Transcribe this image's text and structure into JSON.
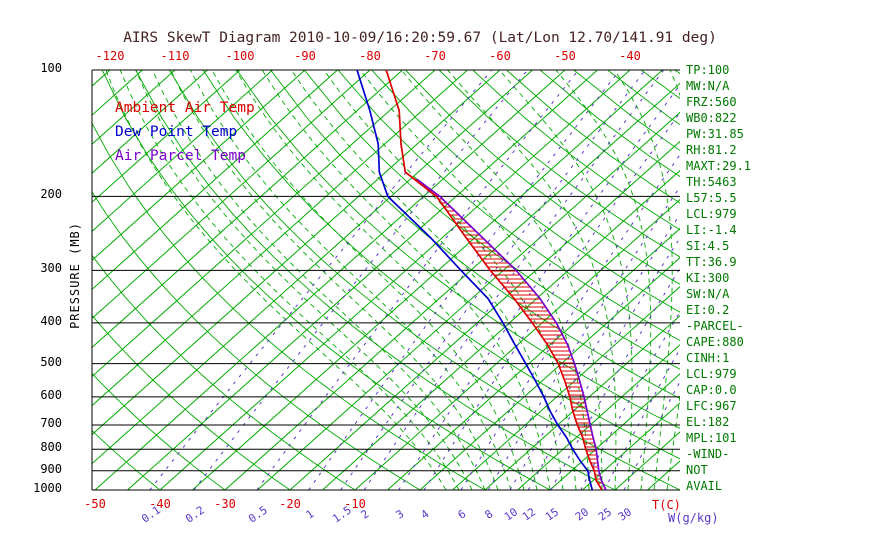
{
  "title": "AIRS SkewT Diagram 2010-10-09/16:20:59.67 (Lat/Lon 12.70/141.91 deg)",
  "colors": {
    "temp_line": "#dd0000",
    "dewpoint_line": "#0000cc",
    "parcel_line": "#7a00cc",
    "isotherm_green": "#00aa00",
    "adiabat_green": "#00aa00",
    "mixing_purple": "#5b37c9",
    "axis_black": "#000000",
    "info_green": "#007a00",
    "title_color": "#442222",
    "hatch_red": "#dd0000",
    "tick_red": "#dd0000"
  },
  "legend": [
    {
      "label": "Ambient Air Temp",
      "color": "#dd0000"
    },
    {
      "label": "Dew Point Temp",
      "color": "#0000cc"
    },
    {
      "label": "Air Parcel Temp",
      "color": "#7a00cc"
    }
  ],
  "info_panel": [
    "TP:100",
    "MW:N/A",
    "FRZ:560",
    "WB0:822",
    "PW:31.85",
    "RH:81.2",
    "MAXT:29.1",
    "TH:5463",
    "L57:5.5",
    "LCL:979",
    "LI:-1.4",
    "SI:4.5",
    "TT:36.9",
    "KI:300",
    "SW:N/A",
    "EI:0.2",
    "-PARCEL-",
    "CAPE:880",
    "CINH:1",
    "LCL:979",
    "CAP:0.0",
    "LFC:967",
    "EL:182",
    "MPL:101",
    "-WIND-",
    "NOT",
    "AVAIL"
  ],
  "axes": {
    "pressure_label": "PRESSURE (MB)",
    "pressure_ticks": [
      100,
      200,
      300,
      400,
      500,
      600,
      700,
      800,
      900,
      1000
    ],
    "top_temp_ticks": [
      -120,
      -110,
      -100,
      -90,
      -80,
      -70,
      -60,
      -50,
      -40
    ],
    "bottom_temp_ticks": [
      -50,
      -40,
      -30,
      -20,
      -10
    ],
    "temp_axis_label": "T(C)",
    "mixing_axis_label": "W(g/kg)"
  },
  "chart_data": {
    "type": "line",
    "title": "AIRS Skew-T log-P atmospheric sounding",
    "x_axis": "Temperature (C), skewed isotherms",
    "y_axis": "Pressure (MB), log scale",
    "y_range": [
      100,
      1000
    ],
    "series": [
      {
        "name": "Ambient Air Temp",
        "color": "#dd0000",
        "points": [
          [
            1000,
            28
          ],
          [
            950,
            25.5
          ],
          [
            900,
            23.5
          ],
          [
            850,
            21
          ],
          [
            800,
            18.5
          ],
          [
            750,
            16
          ],
          [
            700,
            13
          ],
          [
            650,
            10
          ],
          [
            600,
            7
          ],
          [
            550,
            3.5
          ],
          [
            500,
            -0.5
          ],
          [
            450,
            -5.5
          ],
          [
            400,
            -11.5
          ],
          [
            350,
            -18.5
          ],
          [
            300,
            -27
          ],
          [
            250,
            -36.5
          ],
          [
            200,
            -48
          ],
          [
            175,
            -57
          ],
          [
            150,
            -62.5
          ],
          [
            125,
            -68.5
          ],
          [
            100,
            -77.5
          ]
        ]
      },
      {
        "name": "Dew Point Temp",
        "color": "#0000cc",
        "points": [
          [
            1000,
            26.5
          ],
          [
            950,
            24.5
          ],
          [
            900,
            22.5
          ],
          [
            850,
            19.5
          ],
          [
            800,
            16.5
          ],
          [
            750,
            13.5
          ],
          [
            700,
            10
          ],
          [
            650,
            6.5
          ],
          [
            600,
            3
          ],
          [
            550,
            -1
          ],
          [
            500,
            -5.5
          ],
          [
            450,
            -10.5
          ],
          [
            400,
            -16
          ],
          [
            350,
            -22.5
          ],
          [
            300,
            -31.5
          ],
          [
            250,
            -42
          ],
          [
            200,
            -55.5
          ],
          [
            175,
            -61
          ],
          [
            150,
            -66
          ],
          [
            125,
            -73
          ],
          [
            100,
            -82
          ]
        ]
      },
      {
        "name": "Air Parcel Temp",
        "color": "#7a00cc",
        "points": [
          [
            1000,
            28.6
          ],
          [
            950,
            26.3
          ],
          [
            900,
            24.2
          ],
          [
            850,
            22.2
          ],
          [
            800,
            20.1
          ],
          [
            750,
            17.6
          ],
          [
            700,
            15
          ],
          [
            650,
            12.2
          ],
          [
            600,
            9.2
          ],
          [
            550,
            5.8
          ],
          [
            500,
            2
          ],
          [
            450,
            -2.4
          ],
          [
            400,
            -7.8
          ],
          [
            350,
            -14.5
          ],
          [
            300,
            -23
          ],
          [
            250,
            -34
          ],
          [
            200,
            -47.5
          ],
          [
            182,
            -54
          ]
        ]
      }
    ],
    "cape_hatch": {
      "from_p": 967,
      "to_p": 185
    },
    "background": {
      "isotherms_c": {
        "min": -120,
        "max": 45,
        "step": 5
      },
      "dry_adiabats_c": {
        "min": -40,
        "max": 190,
        "step": 10
      },
      "moist_adiabats_c": {
        "min": 4,
        "max": 38,
        "step": 2
      },
      "mixing_ratios_g_kg": [
        0.1,
        0.2,
        0.5,
        1,
        1.5,
        2,
        3,
        4,
        6,
        8,
        10,
        12,
        15,
        20,
        25,
        30
      ]
    }
  }
}
